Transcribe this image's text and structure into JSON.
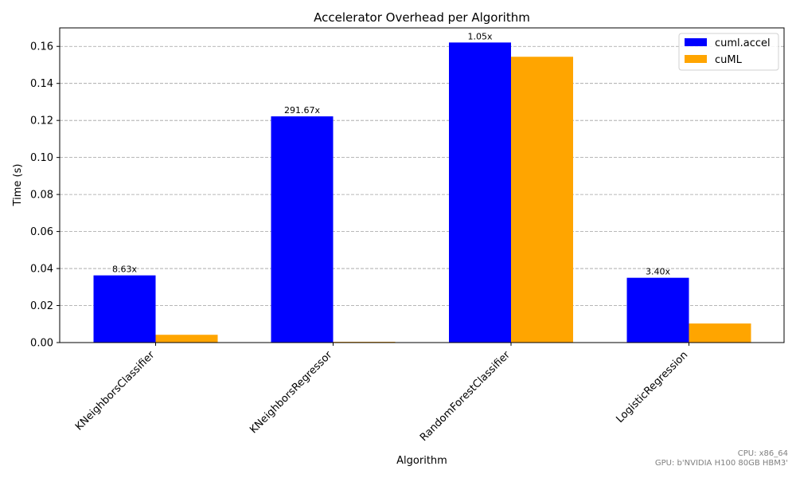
{
  "chart_data": {
    "type": "bar",
    "title": "Accelerator Overhead per Algorithm",
    "xlabel": "Algorithm",
    "ylabel": "Time (s)",
    "categories": [
      "KNeighborsClassifier",
      "KNeighborsRegressor",
      "RandomForestClassifier",
      "LogisticRegression"
    ],
    "series": [
      {
        "name": "cuml.accel",
        "color": "#0000ff",
        "values": [
          0.0363,
          0.1222,
          0.1621,
          0.035
        ]
      },
      {
        "name": "cuML",
        "color": "#ffa500",
        "values": [
          0.0042,
          0.0004,
          0.1544,
          0.0103
        ]
      }
    ],
    "annotations": [
      "8.63x",
      "291.67x",
      "1.05x",
      "3.40x"
    ],
    "ylim": [
      0,
      0.17
    ],
    "yticks": [
      "0.00",
      "0.02",
      "0.04",
      "0.06",
      "0.08",
      "0.10",
      "0.12",
      "0.14",
      "0.16"
    ],
    "grid": "y, dashed",
    "legend_position": "top-right"
  },
  "footer": {
    "cpu": "CPU: x86_64",
    "gpu": "GPU: b'NVIDIA H100 80GB HBM3'"
  }
}
